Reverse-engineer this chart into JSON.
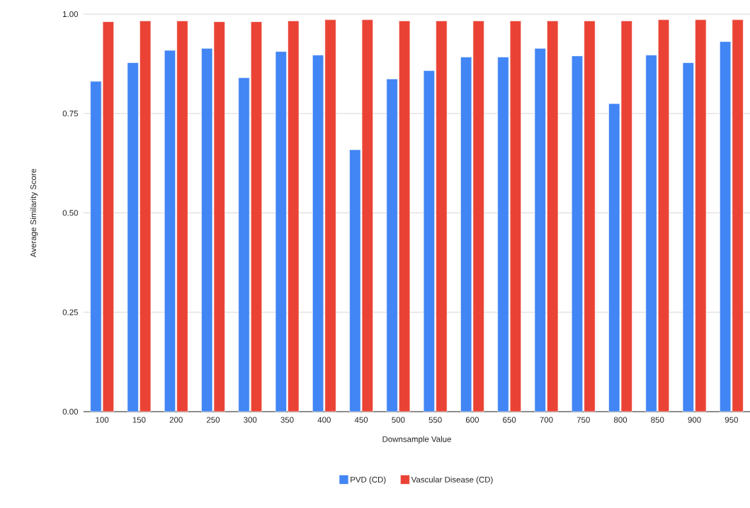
{
  "chart_data": {
    "type": "bar",
    "xlabel": "Downsample Value",
    "ylabel": "Average Similarity Score",
    "categories": [
      "100",
      "150",
      "200",
      "250",
      "300",
      "350",
      "400",
      "450",
      "500",
      "550",
      "600",
      "650",
      "700",
      "750",
      "800",
      "850",
      "900",
      "950"
    ],
    "series": [
      {
        "name": "PVD (CD)",
        "color": "#4285f4",
        "values": [
          0.831,
          0.878,
          0.909,
          0.914,
          0.84,
          0.906,
          0.897,
          0.659,
          0.837,
          0.858,
          0.892,
          0.892,
          0.914,
          0.895,
          0.775,
          0.897,
          0.878,
          0.931
        ]
      },
      {
        "name": "Vascular Disease (CD)",
        "color": "#ea4335",
        "values": [
          0.981,
          0.983,
          0.983,
          0.981,
          0.981,
          0.983,
          0.986,
          0.986,
          0.983,
          0.983,
          0.983,
          0.983,
          0.983,
          0.983,
          0.983,
          0.986,
          0.986,
          0.986
        ]
      }
    ],
    "ylim": [
      0,
      1
    ],
    "yticks": [
      {
        "value": 0,
        "label": "0.00"
      },
      {
        "value": 0.25,
        "label": "0.25"
      },
      {
        "value": 0.5,
        "label": "0.50"
      },
      {
        "value": 0.75,
        "label": "0.75"
      },
      {
        "value": 1,
        "label": "1.00"
      }
    ],
    "grid": "y",
    "legend": "bottom"
  }
}
